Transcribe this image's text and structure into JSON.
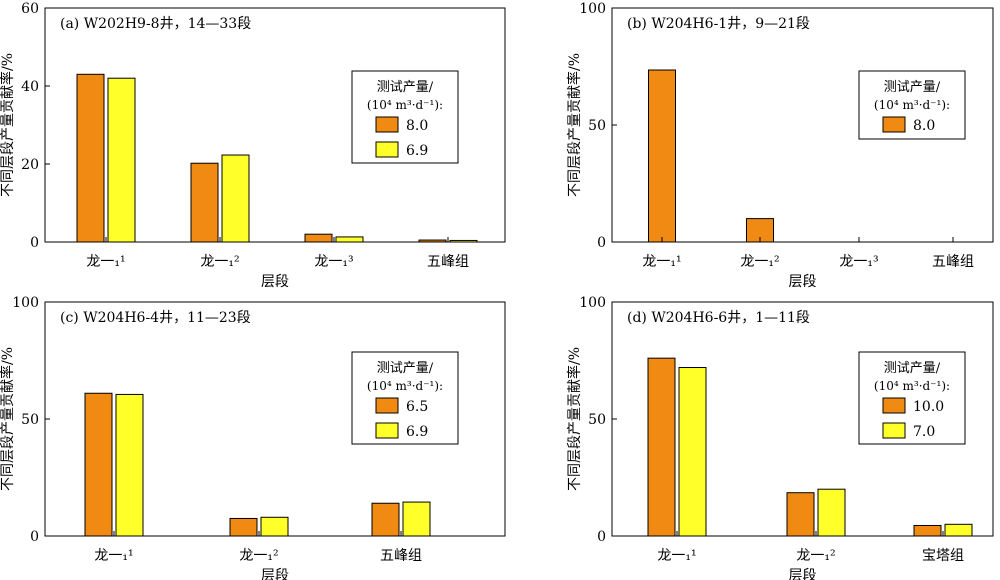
{
  "colors": {
    "orange": "#F08A12",
    "yellow": "#FFFF2A",
    "axis": "#000000"
  },
  "legend_title_line1": "测试产量/",
  "legend_title_line2": "(10⁴ m³·d⁻¹):",
  "shared_ylabel": "不同层段产量贡献率/%",
  "shared_xlabel": "层段",
  "chart_data": [
    {
      "type": "bar",
      "title": "(a) W202H9-8井，14—33段",
      "xlabel": "层段",
      "ylabel": "不同层段产量贡献率/%",
      "ylim": [
        0,
        60
      ],
      "yticks": [
        0,
        20,
        40,
        60
      ],
      "categories": [
        "龙一₁¹",
        "龙一₁²",
        "龙一₁³",
        "五峰组"
      ],
      "series": [
        {
          "name": "8.0",
          "color": "#F08A12",
          "values": [
            43,
            20.2,
            2,
            0.5
          ]
        },
        {
          "name": "6.9",
          "color": "#FFFF2A",
          "values": [
            42,
            22.3,
            1.3,
            0.4
          ]
        }
      ],
      "legend": "top-right"
    },
    {
      "type": "bar",
      "title": "(b) W204H6-1井，9—21段",
      "xlabel": "层段",
      "ylabel": "不同层段产量贡献率/%",
      "ylim": [
        0,
        100
      ],
      "yticks": [
        0,
        50,
        100
      ],
      "categories": [
        "龙一₁¹",
        "龙一₁²",
        "龙一₁³",
        "五峰组"
      ],
      "series": [
        {
          "name": "8.0",
          "color": "#F08A12",
          "values": [
            73.5,
            10,
            0,
            0
          ]
        }
      ],
      "legend": "top-right"
    },
    {
      "type": "bar",
      "title": "(c) W204H6-4井，11—23段",
      "xlabel": "层段",
      "ylabel": "不同层段产量贡献率/%",
      "ylim": [
        0,
        100
      ],
      "yticks": [
        0,
        50,
        100
      ],
      "categories": [
        "龙一₁¹",
        "龙一₁²",
        "五峰组"
      ],
      "series": [
        {
          "name": "6.5",
          "color": "#F08A12",
          "values": [
            61,
            7.5,
            14
          ]
        },
        {
          "name": "6.9",
          "color": "#FFFF2A",
          "values": [
            60.5,
            8,
            14.5
          ]
        }
      ],
      "legend": "top-right"
    },
    {
      "type": "bar",
      "title": "(d) W204H6-6井，1—11段",
      "xlabel": "层段",
      "ylabel": "不同层段产量贡献率/%",
      "ylim": [
        0,
        100
      ],
      "yticks": [
        0,
        50,
        100
      ],
      "categories": [
        "龙一₁¹",
        "龙一₁²",
        "宝塔组"
      ],
      "series": [
        {
          "name": "10.0",
          "color": "#F08A12",
          "values": [
            76,
            18.5,
            4.5
          ]
        },
        {
          "name": "7.0",
          "color": "#FFFF2A",
          "values": [
            72,
            20,
            5
          ]
        }
      ],
      "legend": "top-right"
    }
  ]
}
